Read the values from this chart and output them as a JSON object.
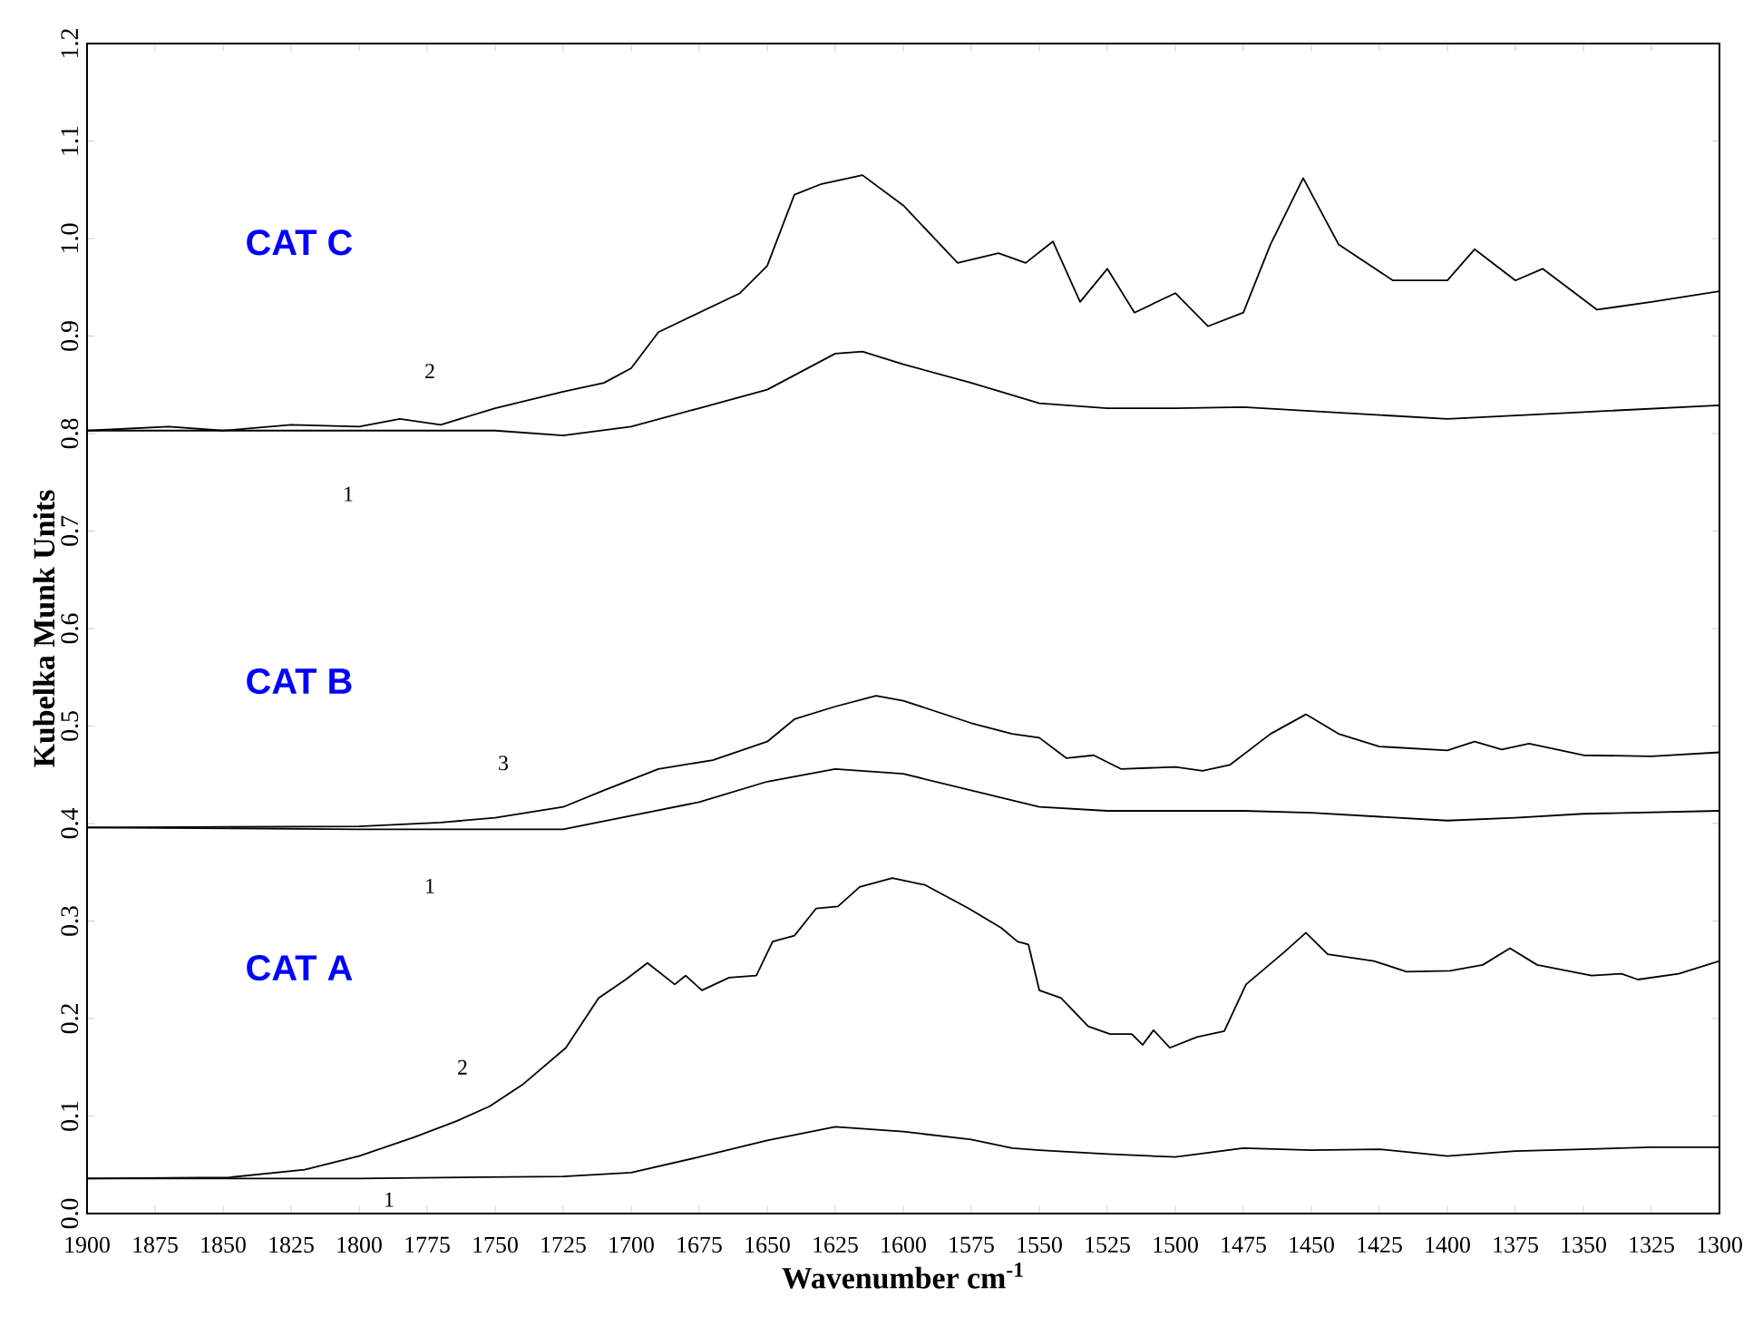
{
  "chart_data": {
    "type": "line",
    "xlabel": "Wavenumber cm$^{-1}$",
    "ylabel": "Kubelka Munk Units",
    "xlim": [
      1900,
      1300
    ],
    "ylim": [
      0,
      1.2
    ],
    "xticks": [
      1900,
      1875,
      1850,
      1825,
      1800,
      1775,
      1750,
      1725,
      1700,
      1675,
      1650,
      1625,
      1600,
      1575,
      1550,
      1525,
      1500,
      1475,
      1450,
      1425,
      1400,
      1375,
      1350,
      1325,
      1300
    ],
    "yticks": [
      {
        "value": 0,
        "label": "0.0"
      },
      {
        "value": 0.1,
        "label": "0.1"
      },
      {
        "value": 0.2,
        "label": "0.2"
      },
      {
        "value": 0.3,
        "label": "0.3"
      },
      {
        "value": 0.4,
        "label": "0.4"
      },
      {
        "value": 0.5,
        "label": "0.5"
      },
      {
        "value": 0.6,
        "label": "0.6"
      },
      {
        "value": 0.7,
        "label": "0.7"
      },
      {
        "value": 0.8,
        "label": "0.8"
      },
      {
        "value": 0.9,
        "label": "0.9"
      },
      {
        "value": 1.0,
        "label": "1.0"
      },
      {
        "value": 1.1,
        "label": "1.1"
      },
      {
        "value": 1.2,
        "label": "1.2"
      }
    ],
    "series": [
      {
        "name": "2",
        "color": "#000000",
        "x": [
          1900,
          1870,
          1850,
          1825,
          1800,
          1785,
          1770,
          1750,
          1725,
          1710,
          1700,
          1690,
          1675,
          1660,
          1650,
          1640,
          1630,
          1615,
          1600,
          1580,
          1565,
          1555,
          1545,
          1535,
          1525,
          1515,
          1500,
          1488,
          1475,
          1465,
          1453,
          1440,
          1420,
          1400,
          1390,
          1375,
          1365,
          1345,
          1325,
          1300
        ],
        "values": [
          0.803,
          0.807,
          0.803,
          0.809,
          0.807,
          0.815,
          0.809,
          0.826,
          0.843,
          0.852,
          0.867,
          0.904,
          0.924,
          0.944,
          0.972,
          1.045,
          1.056,
          1.065,
          1.034,
          0.975,
          0.985,
          0.975,
          0.997,
          0.935,
          0.969,
          0.924,
          0.944,
          0.91,
          0.924,
          0.994,
          1.062,
          0.994,
          0.957,
          0.957,
          0.989,
          0.957,
          0.969,
          0.927,
          0.935,
          0.946
        ]
      },
      {
        "name": "1",
        "color": "#000000",
        "x": [
          1900,
          1750,
          1725,
          1700,
          1675,
          1650,
          1625,
          1615,
          1600,
          1575,
          1550,
          1525,
          1500,
          1475,
          1400,
          1350,
          1300
        ],
        "values": [
          0.803,
          0.803,
          0.798,
          0.807,
          0.826,
          0.845,
          0.882,
          0.884,
          0.871,
          0.852,
          0.831,
          0.826,
          0.826,
          0.827,
          0.815,
          0.822,
          0.829
        ]
      },
      {
        "name": "3",
        "color": "#000000",
        "x": [
          1900,
          1800,
          1770,
          1750,
          1725,
          1710,
          1690,
          1670,
          1650,
          1640,
          1625,
          1610,
          1600,
          1575,
          1560,
          1550,
          1540,
          1530,
          1520,
          1500,
          1490,
          1480,
          1465,
          1452,
          1440,
          1425,
          1400,
          1390,
          1380,
          1370,
          1350,
          1325,
          1300
        ],
        "values": [
          0.396,
          0.397,
          0.401,
          0.406,
          0.417,
          0.434,
          0.456,
          0.465,
          0.484,
          0.507,
          0.52,
          0.531,
          0.526,
          0.503,
          0.492,
          0.488,
          0.467,
          0.47,
          0.456,
          0.458,
          0.454,
          0.46,
          0.492,
          0.512,
          0.492,
          0.479,
          0.475,
          0.484,
          0.476,
          0.482,
          0.47,
          0.469,
          0.473
        ]
      },
      {
        "name": "1",
        "color": "#000000",
        "x": [
          1900,
          1800,
          1725,
          1700,
          1675,
          1650,
          1625,
          1600,
          1575,
          1550,
          1525,
          1500,
          1475,
          1450,
          1400,
          1375,
          1350,
          1300
        ],
        "values": [
          0.396,
          0.394,
          0.394,
          0.408,
          0.422,
          0.443,
          0.456,
          0.451,
          0.434,
          0.417,
          0.413,
          0.413,
          0.413,
          0.411,
          0.403,
          0.406,
          0.41,
          0.413
        ]
      },
      {
        "name": "2",
        "color": "#000000",
        "x": [
          1900,
          1848,
          1820,
          1800,
          1780,
          1764,
          1752,
          1740,
          1724,
          1712,
          1702,
          1694,
          1684,
          1680,
          1674,
          1664,
          1654,
          1648,
          1640,
          1632,
          1624,
          1616,
          1604,
          1592,
          1576,
          1564,
          1558,
          1554,
          1550,
          1542,
          1532,
          1524,
          1516,
          1512,
          1508,
          1502,
          1492,
          1482,
          1474,
          1460,
          1452,
          1444,
          1427,
          1415,
          1399,
          1387,
          1377,
          1367,
          1347,
          1336,
          1330,
          1315,
          1300
        ],
        "values": [
          0.036,
          0.037,
          0.045,
          0.059,
          0.078,
          0.095,
          0.11,
          0.132,
          0.17,
          0.221,
          0.24,
          0.257,
          0.235,
          0.244,
          0.229,
          0.242,
          0.244,
          0.279,
          0.285,
          0.313,
          0.315,
          0.335,
          0.344,
          0.337,
          0.313,
          0.293,
          0.279,
          0.276,
          0.229,
          0.221,
          0.192,
          0.184,
          0.184,
          0.173,
          0.188,
          0.17,
          0.181,
          0.187,
          0.235,
          0.268,
          0.288,
          0.266,
          0.259,
          0.248,
          0.249,
          0.255,
          0.272,
          0.255,
          0.244,
          0.246,
          0.24,
          0.246,
          0.259
        ]
      },
      {
        "name": "1",
        "color": "#000000",
        "x": [
          1900,
          1800,
          1725,
          1700,
          1675,
          1650,
          1625,
          1600,
          1575,
          1560,
          1550,
          1525,
          1500,
          1475,
          1450,
          1425,
          1400,
          1375,
          1350,
          1325,
          1300
        ],
        "values": [
          0.036,
          0.036,
          0.038,
          0.042,
          0.058,
          0.075,
          0.089,
          0.084,
          0.076,
          0.067,
          0.065,
          0.061,
          0.058,
          0.067,
          0.065,
          0.066,
          0.059,
          0.064,
          0.066,
          0.068,
          0.068
        ]
      }
    ],
    "annotations": [
      "CAT C",
      "CAT B",
      "CAT A"
    ]
  }
}
